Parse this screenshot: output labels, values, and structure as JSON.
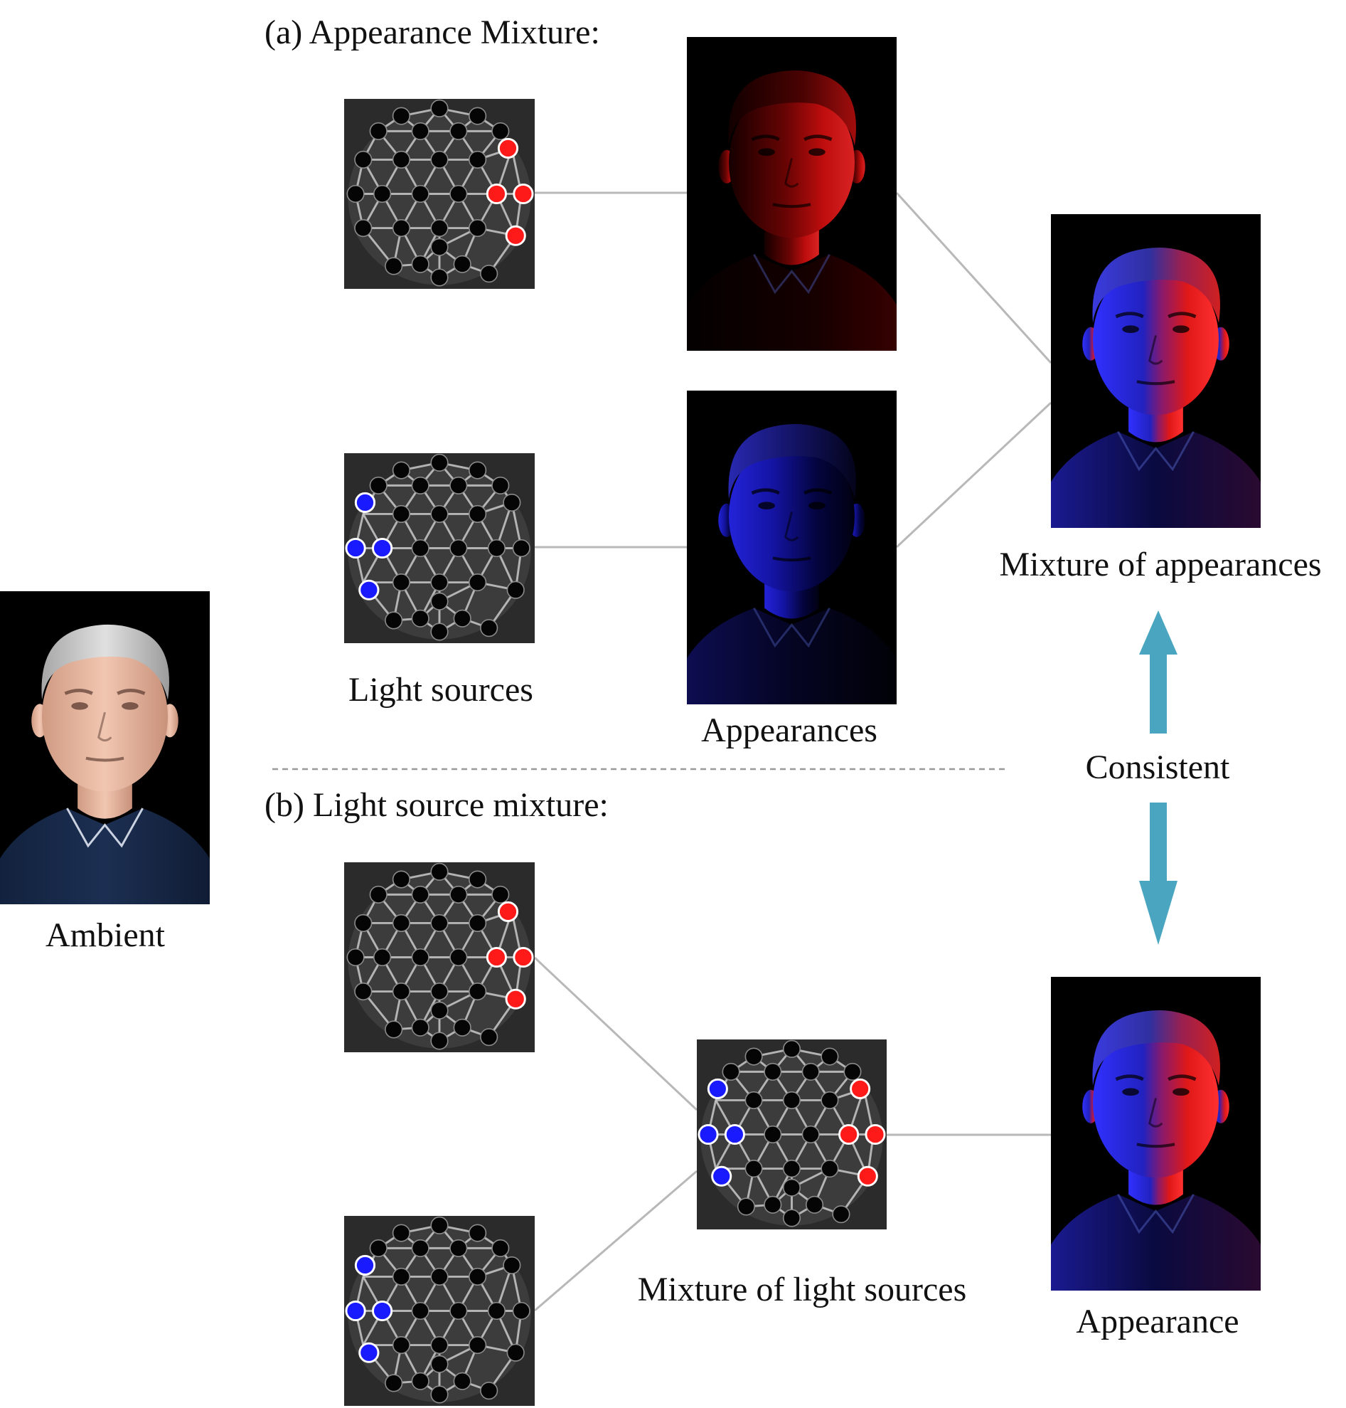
{
  "section_a": {
    "title": "(a) Appearance Mixture:"
  },
  "section_b": {
    "title": "(b) Light source mixture:"
  },
  "labels": {
    "light_sources": "Light sources",
    "appearances": "Appearances",
    "mixture_of_appearances": "Mixture of appearances",
    "consistent": "Consistent",
    "ambient": "Ambient",
    "mixture_of_light_sources": "Mixture of light sources",
    "appearance": "Appearance"
  },
  "colors": {
    "red_light": "#ff1a1a",
    "blue_light": "#1a1aff",
    "off_light": "#050505",
    "arrow": "#4aa6c0",
    "connector": "#b8b8b8",
    "divider": "#9a9a9a"
  },
  "light_stages": {
    "a_top": "red-right",
    "a_bottom": "blue-left",
    "b_top": "red-right",
    "b_bottom": "blue-left",
    "mixture": "red-right+blue-left"
  },
  "portraits": {
    "red_appearance": "red-lit",
    "blue_appearance": "blue-lit",
    "mixture_top": "red-blue-lit",
    "appearance_bottom": "red-blue-lit",
    "ambient": "ambient-lit"
  }
}
